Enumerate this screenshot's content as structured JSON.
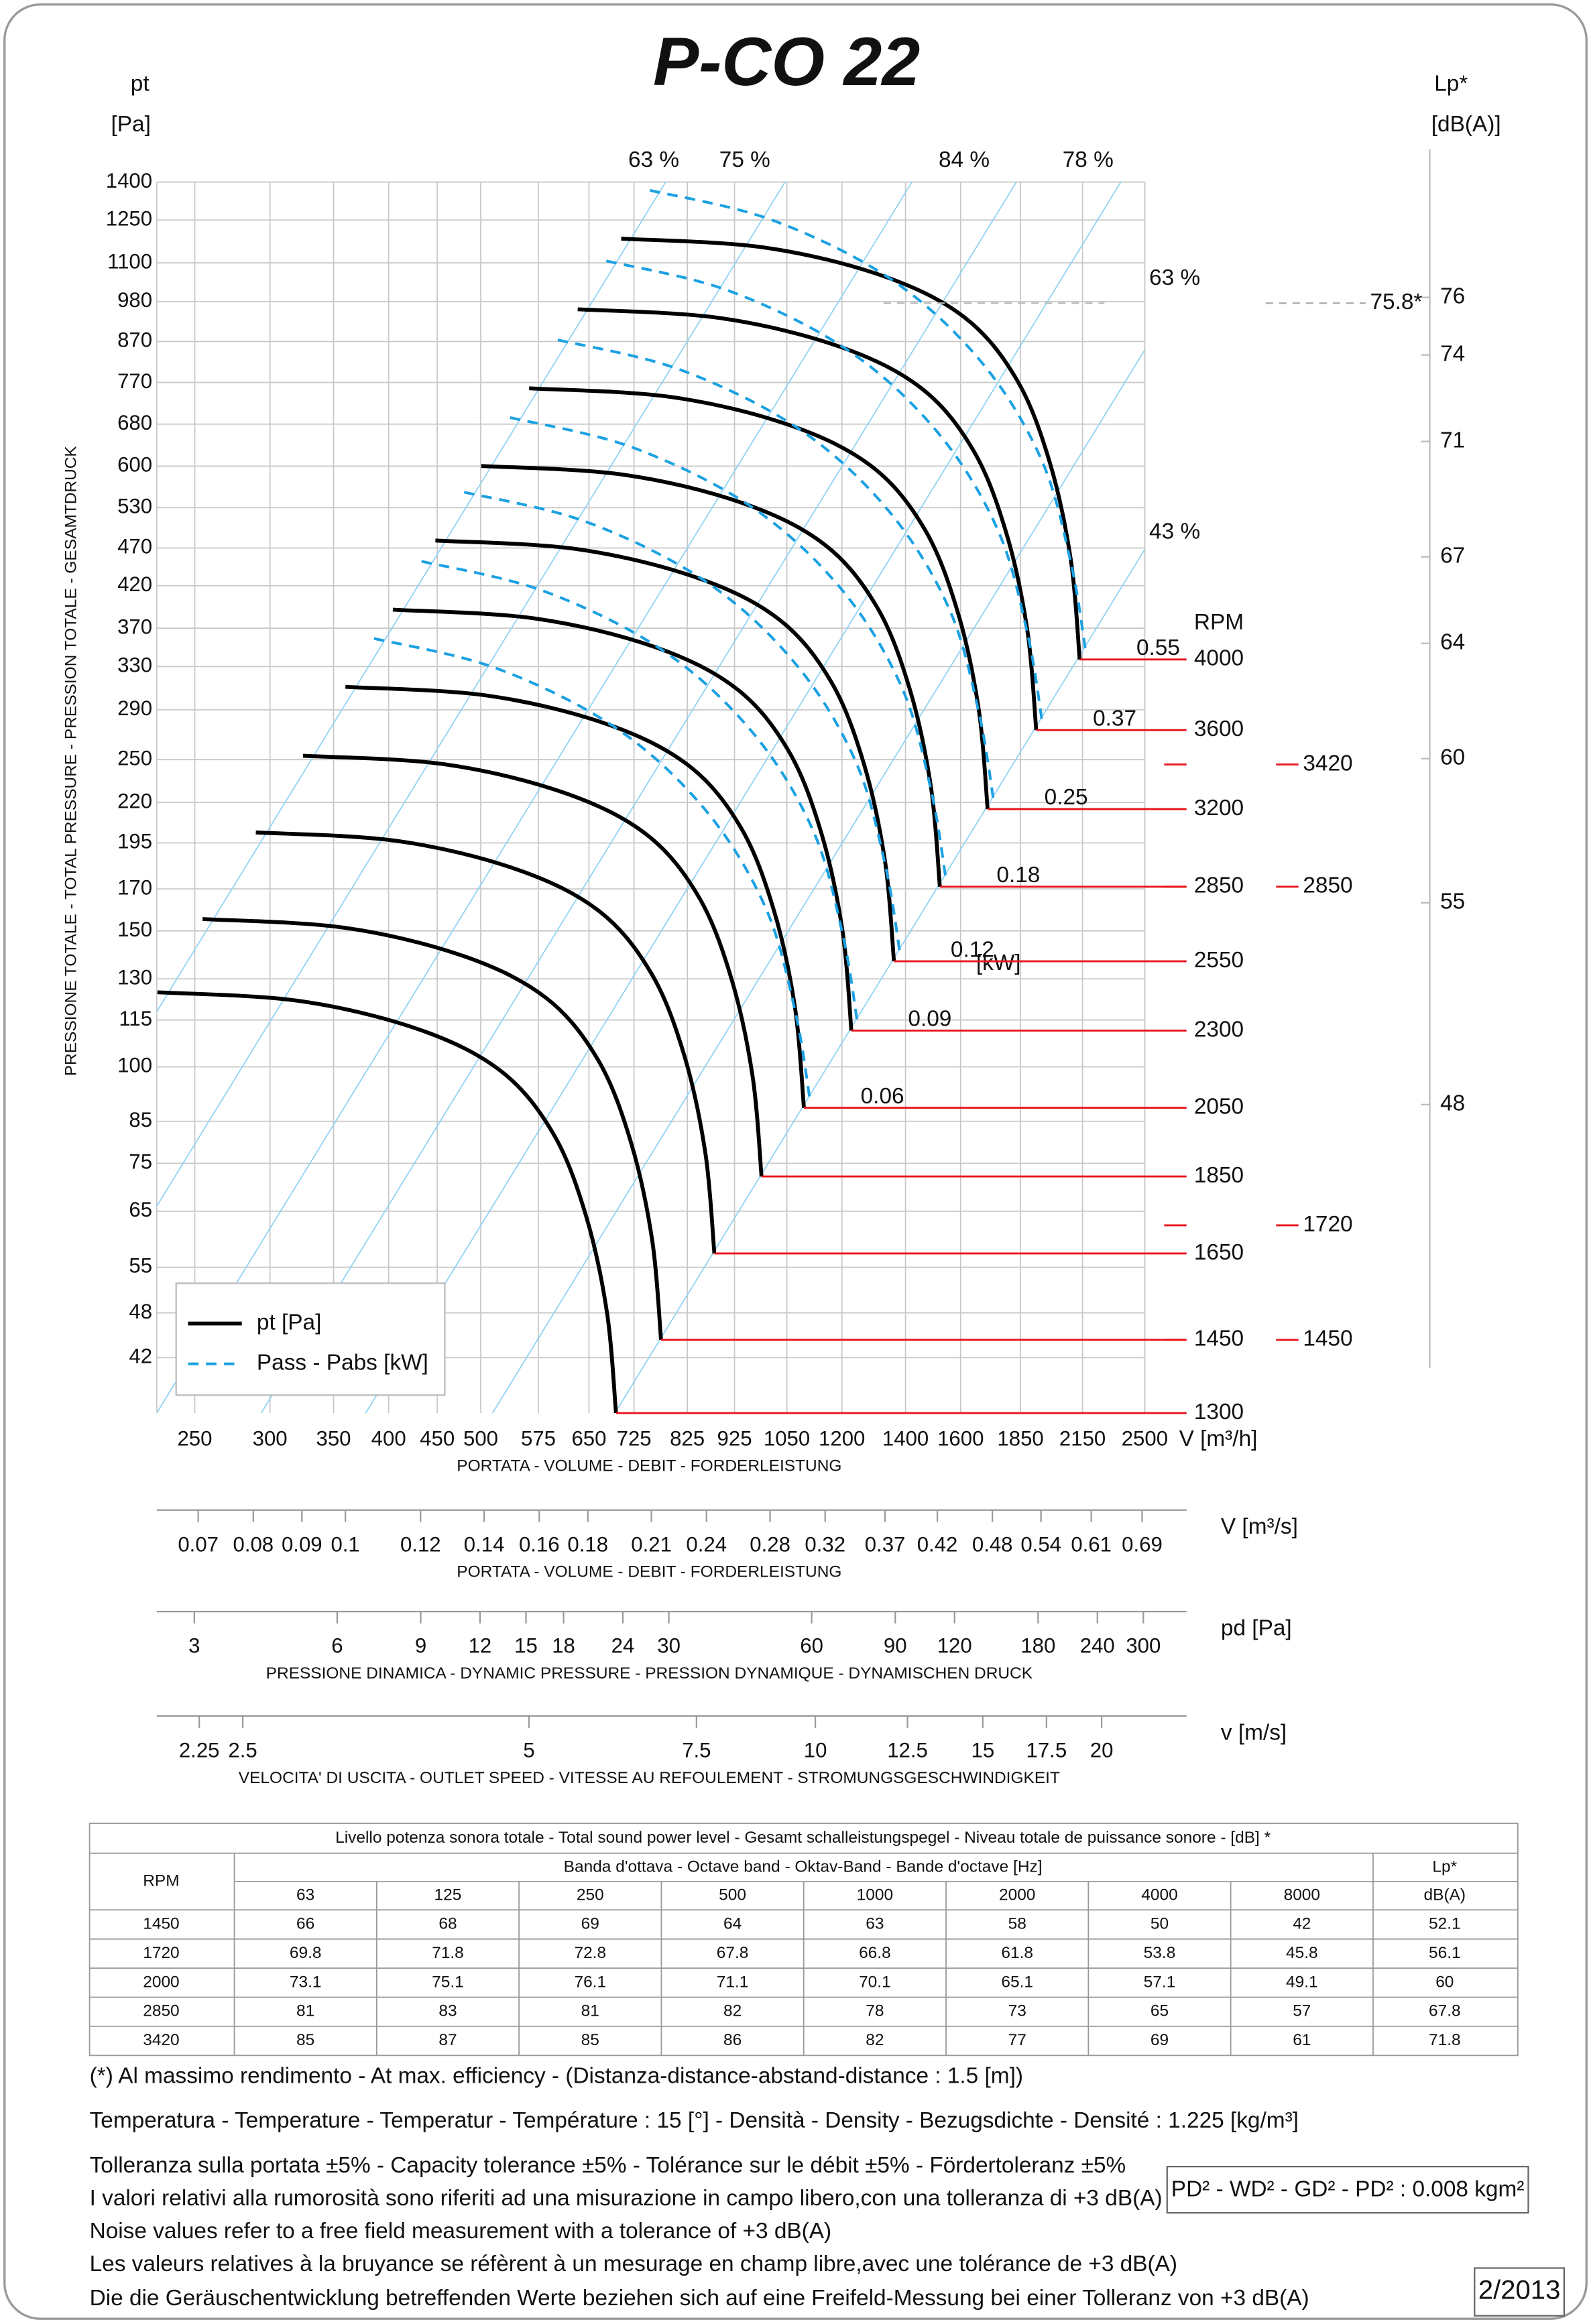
{
  "title": "P-CO 22",
  "chart_data": {
    "type": "line",
    "ylabel": "pt",
    "yunit": "[Pa]",
    "side_label": "PRESSIONE TOTALE - TOTAL PRESSURE - PRESSION TOTALE - GESAMTDRUCK",
    "yscale": "log",
    "ylim": [
      35.6,
      1400
    ],
    "yticks": [
      42,
      48,
      55,
      65,
      75,
      85,
      100,
      115,
      130,
      150,
      170,
      195,
      220,
      250,
      290,
      330,
      370,
      420,
      470,
      530,
      600,
      680,
      770,
      870,
      980,
      1100,
      1250,
      1400
    ],
    "xlabel": "V [m³/h]",
    "xcaption": "PORTATA - VOLUME - DEBIT - FORDERLEISTUNG",
    "xscale": "log",
    "xlim": [
      228,
      2500
    ],
    "xticks": [
      250,
      300,
      350,
      400,
      450,
      500,
      575,
      650,
      725,
      825,
      925,
      1050,
      1200,
      1400,
      1600,
      1850,
      2150,
      2500
    ],
    "grid": true,
    "legend": "lower left",
    "rpm_color": "#e8141b",
    "rpm_label": "RPM",
    "kw_unit": "[kW]",
    "efficiency_labels_top": [
      "63 %",
      "75 %",
      "84 %",
      "78 %"
    ],
    "efficiency_labels_right": [
      "63 %",
      "43 %"
    ],
    "series": [
      {
        "name": "pt [Pa]",
        "color": "#000000",
        "style": "solid",
        "curves": [
          {
            "rpm": 1300,
            "x": [
              228.4,
              322.1,
              430.3,
              525.3,
              596.2,
              645.4,
              679.1,
              694.0
            ],
            "values": [
              124.9,
              121.7,
              111.8,
              98.7,
              81.9,
              64.1,
              48.0,
              35.6
            ]
          },
          {
            "rpm": 1450,
            "x": [
              254.8,
              359.3,
              479.9,
              585.9,
              665.0,
              719.9,
              757.5,
              774.1
            ],
            "values": [
              155.4,
              151.4,
              139.1,
              122.8,
              101.9,
              79.7,
              59.7,
              44.3
            ]
          },
          {
            "rpm": 1650,
            "x": [
              289.9,
              408.8,
              546.2,
              666.7,
              756.7,
              819.2,
              861.9,
              880.9
            ],
            "values": [
              201.2,
              196.1,
              180.1,
              159.0,
              131.9,
              103.3,
              77.3,
              57.3
            ]
          },
          {
            "rpm": 1850,
            "x": [
              325.0,
              458.4,
              612.3,
              747.5,
              848.4,
              918.5,
              966.4,
              987.6
            ],
            "values": [
              252.9,
              246.5,
              226.4,
              199.9,
              165.9,
              129.8,
              97.2,
              72.1
            ]
          },
          {
            "rpm": 2050,
            "kw": 0.06,
            "x": [
              360.2,
              507.9,
              678.5,
              828.4,
              940.2,
              1017.7,
              1070.9,
              1094.4
            ],
            "values": [
              310.6,
              302.6,
              278.0,
              245.4,
              203.7,
              159.4,
              119.4,
              88.5
            ]
          },
          {
            "rpm": 2300,
            "kw": 0.09,
            "x": [
              404.1,
              569.9,
              761.3,
              929.4,
              1054.8,
              1141.9,
              1201.5,
              1227.8
            ],
            "values": [
              391.0,
              380.9,
              350.0,
              308.9,
              256.4,
              200.6,
              150.2,
              111.4
            ]
          },
          {
            "rpm": 2550,
            "kw": 0.12,
            "x": [
              448.0,
              631.8,
              844.1,
              1030.4,
              1169.5,
              1266.0,
              1332.1,
              1361.3
            ],
            "values": [
              480.6,
              468.3,
              430.2,
              379.8,
              315.1,
              246.6,
              184.7,
              137.0
            ]
          },
          {
            "rpm": 2850,
            "kw": 0.18,
            "x": [
              500.7,
              706.1,
              943.3,
              1151.6,
              1307.1,
              1414.9,
              1488.8,
              1521.5
            ],
            "values": [
              600.3,
              584.9,
              537.3,
              474.4,
              393.6,
              308.1,
              230.7,
              171.1
            ]
          },
          {
            "rpm": 3200,
            "kw": 0.25,
            "x": [
              562.2,
              792.9,
              1059.2,
              1293.0,
              1467.6,
              1588.7,
              1671.6,
              1708.3
            ],
            "values": [
              756.8,
              737.4,
              677.4,
              598.0,
              496.2,
              388.4,
              290.8,
              215.7
            ]
          },
          {
            "rpm": 3600,
            "kw": 0.37,
            "x": [
              632.5,
              892.0,
              1191.6,
              1454.7,
              1651.0,
              1787.3,
              1880.6,
              1921.8
            ],
            "values": [
              957.8,
              933.3,
              857.4,
              756.9,
              628.1,
              491.6,
              368.1,
              273.0
            ]
          },
          {
            "rpm": 4000,
            "kw": 0.55,
            "x": [
              702.8,
              991.1,
              1324.0,
              1616.3,
              1834.5,
              1985.8,
              2089.5,
              2135.4
            ],
            "values": [
              1182.5,
              1152.2,
              1058.5,
              934.4,
              775.4,
              606.9,
              454.4,
              337.0
            ]
          }
        ]
      },
      {
        "name": "Pass - Pabs [kW]",
        "color": "#1ba1e2",
        "style": "dashed",
        "curves": [
          {
            "x": [
              386.1,
              519.7,
              694.0,
              862.0,
              996.7,
              1071.6,
              1111.0
            ],
            "values": [
              358.8,
              328.2,
              274.7,
              215.1,
              161.0,
              117.9,
              90.3
            ]
          },
          {
            "x": [
              433.2,
              583.1,
              778.6,
              967.1,
              1118.2,
              1202.3,
              1246.5
            ],
            "values": [
              451.7,
              413.1,
              345.8,
              270.8,
              202.7,
              148.4,
              113.7
            ]
          },
          {
            "x": [
              480.3,
              646.5,
              863.3,
              1072.2,
              1239.8,
              1333.0,
              1382.0
            ],
            "values": [
              555.2,
              507.8,
              425.0,
              332.8,
              249.1,
              182.4,
              139.7
            ]
          },
          {
            "x": [
              536.8,
              722.5,
              964.8,
              1198.4,
              1385.7,
              1489.8,
              1544.6
            ],
            "values": [
              693.5,
              634.3,
              530.9,
              415.7,
              311.2,
              227.9,
              174.5
            ]
          },
          {
            "x": [
              602.7,
              811.2,
              1083.3,
              1345.6,
              1555.8,
              1672.8,
              1734.3
            ],
            "values": [
              874.3,
              799.7,
              669.4,
              524.1,
              392.3,
              287.3,
              220.0
            ]
          },
          {
            "x": [
              678.0,
              912.6,
              1218.7,
              1513.8,
              1750.3,
              1881.8,
              1951.0
            ],
            "values": [
              1106.5,
              1012.1,
              847.1,
              663.3,
              496.5,
              363.6,
              278.5
            ]
          },
          {
            "x": [
              753.4,
              1014.1,
              1354.1,
              1682.0,
              1944.8,
              2090.9,
              2167.8
            ],
            "values": [
              1366.0,
              1249.5,
              1045.9,
              818.9,
              613.0,
              448.9,
              343.8
            ]
          }
        ]
      }
    ],
    "rpm_marks": [
      3420,
      2850,
      1720,
      1450
    ],
    "y2label": "Lp*",
    "y2unit": "[dB(A)]",
    "y2lim": [
      37.3,
      80.0
    ],
    "y2ticks": [
      48,
      55,
      60,
      64,
      67,
      71,
      74,
      76
    ],
    "lp_max": {
      "value": 75.8,
      "label": "75.8*"
    }
  },
  "scales": [
    {
      "label": "V  [m³/s]",
      "caption": "PORTATA - VOLUME - DEBIT - FORDERLEISTUNG",
      "scale": "log",
      "lim": [
        0.0633,
        0.6944
      ],
      "ticks": [
        0.07,
        0.08,
        0.09,
        0.1,
        0.12,
        0.14,
        0.16,
        0.18,
        0.21,
        0.24,
        0.28,
        0.32,
        0.37,
        0.42,
        0.48,
        0.54,
        0.61,
        0.69
      ]
    },
    {
      "label": "pd  [Pa]",
      "caption": "PRESSIONE DINAMICA - DYNAMIC PRESSURE - PRESSION DYNAMIQUE - DYNAMISCHEN DRUCK",
      "scale": "log",
      "lim": [
        2.5,
        302
      ],
      "ticks": [
        3,
        6,
        9,
        12,
        15,
        18,
        24,
        30,
        60,
        90,
        120,
        180,
        240,
        300
      ]
    },
    {
      "label": "v  [m/s]",
      "caption": "VELOCITA' DI USCITA - OUTLET SPEED - VITESSE AU REFOULEMENT - STROMUNGSGESCHWINDIGKEIT",
      "scale": "log",
      "lim": [
        2.03,
        22.2
      ],
      "ticks": [
        2.25,
        2.5,
        5,
        7.5,
        10,
        12.5,
        15,
        17.5,
        20
      ]
    }
  ],
  "sound_table": {
    "title": "Livello potenza sonora totale - Total sound power level - Gesamt schalleistungspegel - Niveau totale de puissance sonore - [dB]   *",
    "rpm_header": "RPM",
    "band_header": "Banda d'ottava - Octave band - Oktav-Band - Bande d'octave [Hz]",
    "lp_header": "Lp*",
    "lp_unit": "dB(A)",
    "bands": [
      63,
      125,
      250,
      500,
      1000,
      2000,
      4000,
      8000
    ],
    "rows": [
      [
        1450,
        66,
        68,
        69,
        64,
        63,
        58,
        50,
        42,
        52.1
      ],
      [
        1720,
        69.8,
        71.8,
        72.8,
        67.8,
        66.8,
        61.8,
        53.8,
        45.8,
        56.1
      ],
      [
        2000,
        73.1,
        75.1,
        76.1,
        71.1,
        70.1,
        65.1,
        57.1,
        49.1,
        60
      ],
      [
        2850,
        81,
        83,
        81,
        82,
        78,
        73,
        65,
        57,
        67.8
      ],
      [
        3420,
        85,
        87,
        85,
        86,
        82,
        77,
        69,
        61,
        71.8
      ]
    ]
  },
  "notes": [
    "(*) Al massimo rendimento - At max. efficiency - (Distanza-distance-abstand-distance : 1.5 [m])",
    "Temperatura - Temperature - Temperatur - Température : 15 [°]  -  Densità - Density - Bezugsdichte - Densité : 1.225 [kg/m³]",
    "Tolleranza sulla portata  ±5% - Capacity tolerance ±5% - Tolérance sur le débit ±5% - Fördertoleranz ±5%",
    "I valori relativi alla rumorosità sono riferiti ad una misurazione in campo libero,con una tolleranza di +3 dB(A)",
    "Noise values refer to a free field measurement with a tolerance of +3 dB(A)",
    "Les valeurs relatives à la bruyance se réfèrent à un mesurage en champ libre,avec une tolérance de +3 dB(A)",
    "Die die Geräuschentwicklung betreffenden Werte beziehen sich auf eine Freifeld-Messung bei einer Tolleranz von +3 dB(A)"
  ],
  "inertia": "PD² -  WD² - GD² -  PD²  :  0.008 kgm²",
  "date": "2/2013"
}
